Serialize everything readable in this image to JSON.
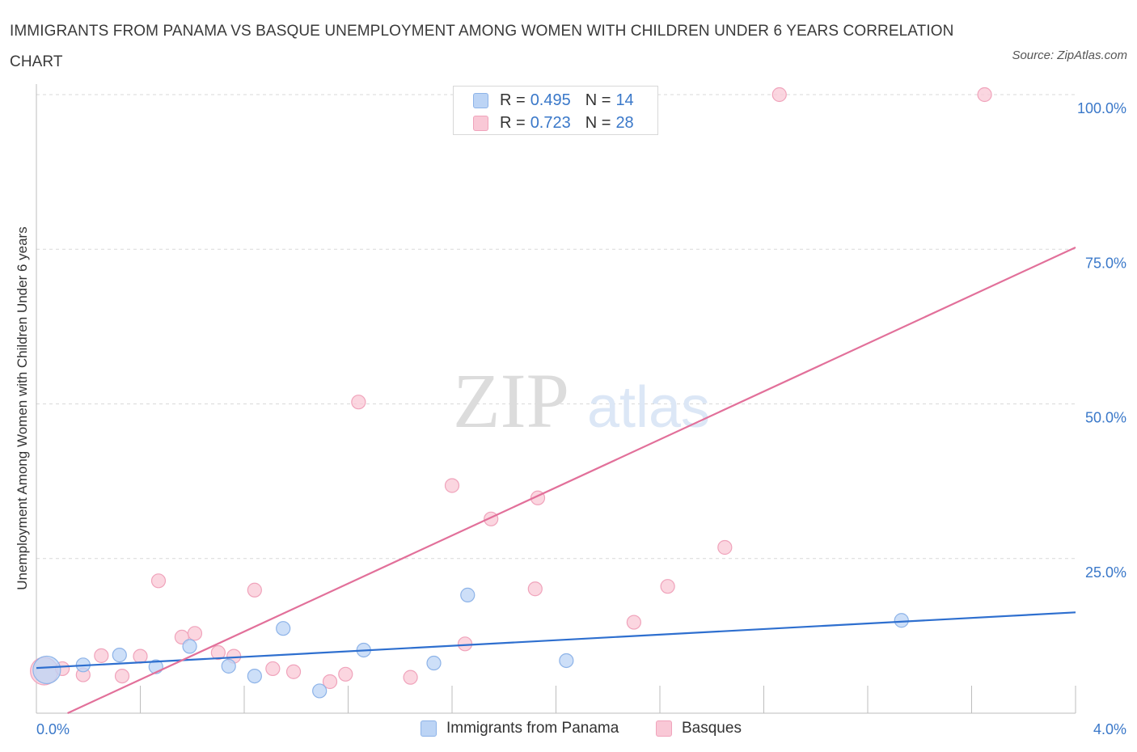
{
  "title": "IMMIGRANTS FROM PANAMA VS BASQUE UNEMPLOYMENT AMONG WOMEN WITH CHILDREN UNDER 6 YEARS CORRELATION CHART",
  "source": "Source: ZipAtlas.com",
  "watermark": {
    "zip": "ZIP",
    "atlas": "atlas"
  },
  "colors": {
    "panama_fill": "#bcd4f5",
    "panama_stroke": "#8db3e8",
    "panama_line": "#2e6fcf",
    "basque_fill": "#f9c8d6",
    "basque_stroke": "#f0a3bb",
    "basque_line": "#e2709a",
    "value_text": "#3a78c9",
    "grid": "#d9d9d9"
  },
  "legend": {
    "rows": [
      {
        "r_label": "R =",
        "r_value": "0.495",
        "n_label": "N =",
        "n_value": "14"
      },
      {
        "r_label": "R =",
        "r_value": "0.723",
        "n_label": "N =",
        "n_value": "28"
      }
    ]
  },
  "chart_data": {
    "type": "scatter",
    "title": "IMMIGRANTS FROM PANAMA VS BASQUE UNEMPLOYMENT AMONG WOMEN WITH CHILDREN UNDER 6 YEARS CORRELATION CHART",
    "xlabel": "",
    "ylabel": "Unemployment Among Women with Children Under 6 years",
    "xlim": [
      0,
      4.0
    ],
    "ylim": [
      0,
      100
    ],
    "x_tick_labels": [
      "0.0%",
      "4.0%"
    ],
    "y_ticks": [
      {
        "value": 25,
        "label": "25.0%"
      },
      {
        "value": 50,
        "label": "50.0%"
      },
      {
        "value": 75,
        "label": "75.0%"
      },
      {
        "value": 100,
        "label": "100.0%"
      }
    ],
    "legend_position": "top-center",
    "series": [
      {
        "name": "Immigrants from Panama",
        "R": 0.495,
        "N": 14,
        "points": [
          {
            "x": 0.04,
            "y": 7.0,
            "size": "large"
          },
          {
            "x": 0.18,
            "y": 7.8
          },
          {
            "x": 0.32,
            "y": 9.4
          },
          {
            "x": 0.46,
            "y": 7.5
          },
          {
            "x": 0.59,
            "y": 10.8
          },
          {
            "x": 0.74,
            "y": 7.6
          },
          {
            "x": 0.84,
            "y": 6.0
          },
          {
            "x": 0.95,
            "y": 13.7
          },
          {
            "x": 1.09,
            "y": 3.6
          },
          {
            "x": 1.26,
            "y": 10.2
          },
          {
            "x": 1.53,
            "y": 8.1
          },
          {
            "x": 1.66,
            "y": 19.1
          },
          {
            "x": 2.04,
            "y": 8.5
          },
          {
            "x": 3.33,
            "y": 15.0
          }
        ],
        "trend": {
          "x": [
            0.0,
            4.0
          ],
          "y": [
            7.3,
            16.3
          ]
        }
      },
      {
        "name": "Basques",
        "R": 0.723,
        "N": 28,
        "points": [
          {
            "x": 0.03,
            "y": 6.8,
            "size": "large"
          },
          {
            "x": 0.1,
            "y": 7.2
          },
          {
            "x": 0.18,
            "y": 6.2
          },
          {
            "x": 0.25,
            "y": 9.3
          },
          {
            "x": 0.33,
            "y": 6.0
          },
          {
            "x": 0.4,
            "y": 9.2
          },
          {
            "x": 0.47,
            "y": 21.4
          },
          {
            "x": 0.56,
            "y": 12.3
          },
          {
            "x": 0.61,
            "y": 12.9
          },
          {
            "x": 0.7,
            "y": 9.8
          },
          {
            "x": 0.76,
            "y": 9.2
          },
          {
            "x": 0.84,
            "y": 19.9
          },
          {
            "x": 0.91,
            "y": 7.2
          },
          {
            "x": 0.99,
            "y": 6.7
          },
          {
            "x": 1.13,
            "y": 5.1
          },
          {
            "x": 1.19,
            "y": 6.3
          },
          {
            "x": 1.24,
            "y": 50.3
          },
          {
            "x": 1.44,
            "y": 5.8
          },
          {
            "x": 1.6,
            "y": 36.8
          },
          {
            "x": 1.65,
            "y": 11.2
          },
          {
            "x": 1.75,
            "y": 31.4
          },
          {
            "x": 1.92,
            "y": 20.1
          },
          {
            "x": 1.93,
            "y": 34.8
          },
          {
            "x": 2.3,
            "y": 14.7
          },
          {
            "x": 2.43,
            "y": 20.5
          },
          {
            "x": 2.65,
            "y": 26.8
          },
          {
            "x": 2.86,
            "y": 100.0
          },
          {
            "x": 3.65,
            "y": 100.0
          }
        ],
        "trend": {
          "x": [
            0.12,
            4.0
          ],
          "y": [
            0.0,
            75.3
          ]
        }
      }
    ]
  }
}
